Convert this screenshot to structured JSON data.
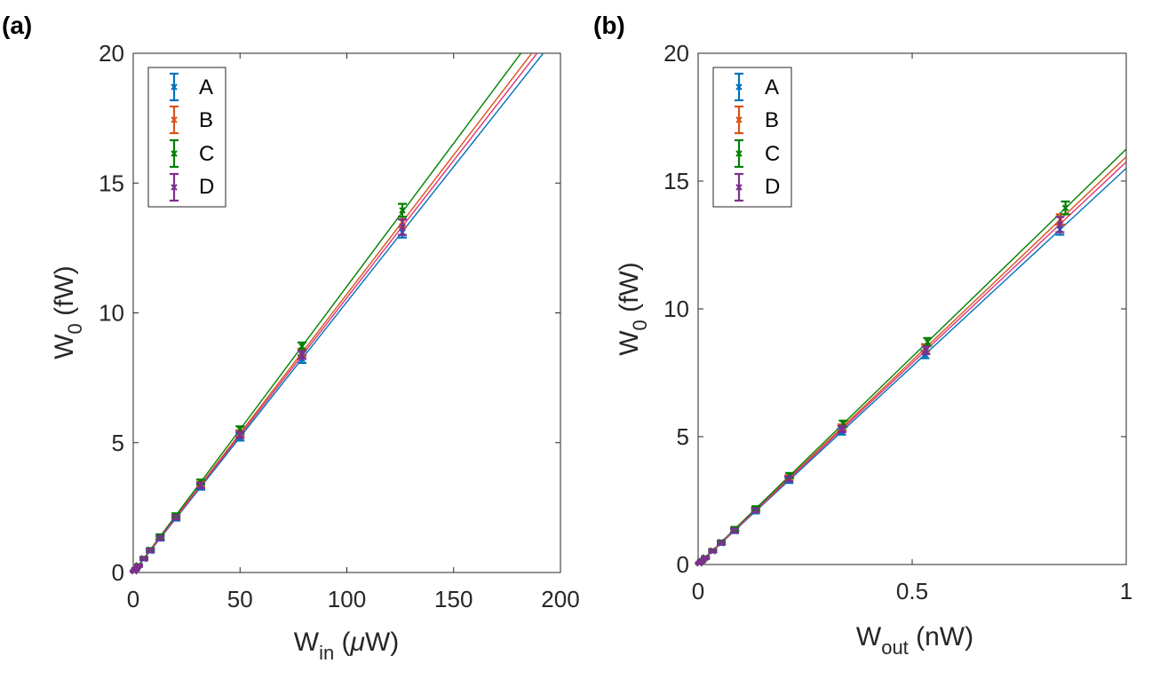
{
  "panels": [
    {
      "label": "(a)",
      "ylabel": {
        "main": "W",
        "sub": "0",
        "unit": " (fW)"
      },
      "xlabel": {
        "main": "W",
        "sub": "in",
        "unit_pre": " (",
        "mu": "μ",
        "unit_post": "W)"
      }
    },
    {
      "label": "(b)",
      "ylabel": {
        "main": "W",
        "sub": "0",
        "unit": " (fW)"
      },
      "xlabel": {
        "main": "W",
        "sub": "out",
        "unit": " (nW)"
      }
    }
  ],
  "legend": [
    "A",
    "B",
    "C",
    "D"
  ],
  "colors": {
    "A": "#0072BD",
    "B": "#D95319",
    "C": "#008000",
    "D": "#7E2F8E",
    "fitD": "#e0337a"
  },
  "chart_data": [
    {
      "type": "scatter",
      "title": "(a)",
      "xlabel": "W_in (μW)",
      "ylabel": "W_0 (fW)",
      "xlim": [
        0,
        200
      ],
      "ylim": [
        0,
        20
      ],
      "xticks": [
        0,
        50,
        100,
        150,
        200
      ],
      "yticks": [
        0,
        5,
        10,
        15,
        20
      ],
      "x": [
        0.5,
        1.2,
        2.5,
        5,
        8,
        12.6,
        20,
        31.6,
        50,
        79,
        126
      ],
      "series": [
        {
          "name": "A",
          "slope": 0.1042,
          "values": [
            0.05,
            0.13,
            0.26,
            0.52,
            0.83,
            1.31,
            2.08,
            3.29,
            5.2,
            8.22,
            13.1
          ],
          "err": [
            0.02,
            0.03,
            0.04,
            0.05,
            0.06,
            0.08,
            0.08,
            0.1,
            0.12,
            0.15,
            0.2
          ]
        },
        {
          "name": "B",
          "slope": 0.1072,
          "values": [
            0.05,
            0.13,
            0.27,
            0.54,
            0.86,
            1.35,
            2.14,
            3.39,
            5.36,
            8.47,
            13.5
          ],
          "err": [
            0.02,
            0.03,
            0.04,
            0.05,
            0.06,
            0.08,
            0.08,
            0.1,
            0.12,
            0.15,
            0.2
          ]
        },
        {
          "name": "C",
          "slope": 0.1102,
          "values": [
            0.06,
            0.14,
            0.28,
            0.55,
            0.88,
            1.39,
            2.2,
            3.48,
            5.51,
            8.71,
            13.95
          ],
          "err": [
            0.02,
            0.03,
            0.04,
            0.05,
            0.06,
            0.08,
            0.08,
            0.1,
            0.12,
            0.15,
            0.25
          ]
        },
        {
          "name": "D",
          "slope": 0.1058,
          "values": [
            0.05,
            0.13,
            0.26,
            0.53,
            0.85,
            1.33,
            2.12,
            3.35,
            5.3,
            8.38,
            13.3
          ],
          "err": [
            0.02,
            0.03,
            0.04,
            0.05,
            0.06,
            0.08,
            0.08,
            0.1,
            0.12,
            0.15,
            0.3
          ]
        }
      ]
    },
    {
      "type": "scatter",
      "title": "(b)",
      "xlabel": "W_out (nW)",
      "ylabel": "W_0 (fW)",
      "xlim": [
        0,
        1
      ],
      "ylim": [
        0,
        20
      ],
      "xticks": [
        0,
        0.5,
        1
      ],
      "yticks": [
        0,
        5,
        10,
        15,
        20
      ],
      "series": [
        {
          "name": "A",
          "slope": 15.5,
          "x": [
            0.003,
            0.008,
            0.017,
            0.034,
            0.054,
            0.085,
            0.134,
            0.212,
            0.335,
            0.53,
            0.845
          ],
          "values": [
            0.05,
            0.13,
            0.26,
            0.52,
            0.83,
            1.31,
            2.08,
            3.29,
            5.2,
            8.22,
            13.1
          ],
          "err": [
            0.02,
            0.03,
            0.04,
            0.05,
            0.06,
            0.08,
            0.08,
            0.1,
            0.12,
            0.15,
            0.2
          ]
        },
        {
          "name": "B",
          "slope": 15.95,
          "x": [
            0.003,
            0.008,
            0.017,
            0.034,
            0.054,
            0.085,
            0.134,
            0.212,
            0.336,
            0.531,
            0.846
          ],
          "values": [
            0.05,
            0.13,
            0.27,
            0.54,
            0.86,
            1.35,
            2.14,
            3.39,
            5.36,
            8.47,
            13.5
          ],
          "err": [
            0.02,
            0.03,
            0.04,
            0.05,
            0.06,
            0.08,
            0.08,
            0.1,
            0.12,
            0.15,
            0.2
          ]
        },
        {
          "name": "C",
          "slope": 16.25,
          "x": [
            0.004,
            0.009,
            0.017,
            0.034,
            0.054,
            0.086,
            0.135,
            0.214,
            0.339,
            0.536,
            0.858
          ],
          "values": [
            0.06,
            0.14,
            0.28,
            0.55,
            0.88,
            1.39,
            2.2,
            3.48,
            5.51,
            8.71,
            13.95
          ],
          "err": [
            0.02,
            0.03,
            0.04,
            0.05,
            0.06,
            0.08,
            0.08,
            0.1,
            0.12,
            0.15,
            0.25
          ]
        },
        {
          "name": "D",
          "slope": 15.75,
          "x": [
            0.003,
            0.008,
            0.017,
            0.034,
            0.054,
            0.085,
            0.134,
            0.212,
            0.336,
            0.532,
            0.845
          ],
          "values": [
            0.05,
            0.13,
            0.26,
            0.53,
            0.85,
            1.33,
            2.12,
            3.35,
            5.3,
            8.38,
            13.3
          ],
          "err": [
            0.02,
            0.03,
            0.04,
            0.05,
            0.06,
            0.08,
            0.08,
            0.1,
            0.12,
            0.15,
            0.3
          ]
        }
      ]
    }
  ]
}
